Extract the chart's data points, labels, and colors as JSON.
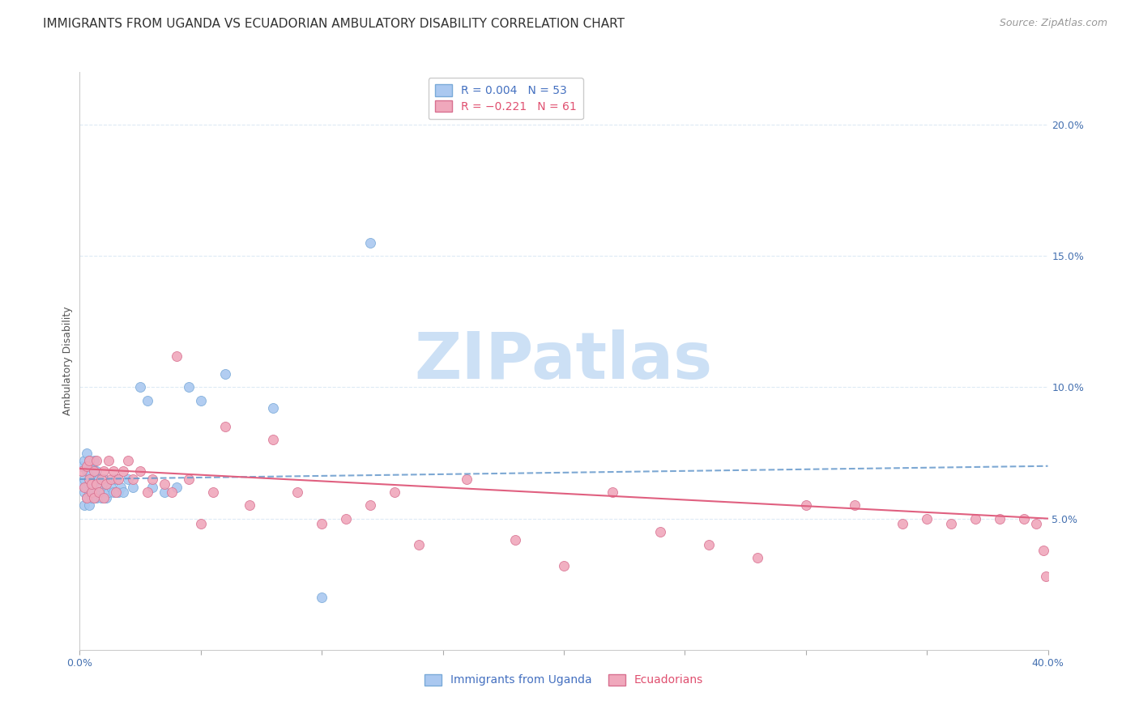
{
  "title": "IMMIGRANTS FROM UGANDA VS ECUADORIAN AMBULATORY DISABILITY CORRELATION CHART",
  "source": "Source: ZipAtlas.com",
  "ylabel": "Ambulatory Disability",
  "xlim": [
    0.0,
    0.4
  ],
  "ylim": [
    0.0,
    0.22
  ],
  "xtick_positions": [
    0.0,
    0.05,
    0.1,
    0.15,
    0.2,
    0.25,
    0.3,
    0.35,
    0.4
  ],
  "xtick_labels": [
    "0.0%",
    "",
    "",
    "",
    "",
    "",
    "",
    "",
    "40.0%"
  ],
  "ytick_positions": [
    0.05,
    0.1,
    0.15,
    0.2
  ],
  "ytick_labels": [
    "5.0%",
    "10.0%",
    "15.0%",
    "20.0%"
  ],
  "series1_name": "Immigrants from Uganda",
  "series2_name": "Ecuadorians",
  "series1_color": "#aac8f0",
  "series1_edge": "#7aaad8",
  "series2_color": "#f0a8bc",
  "series2_edge": "#d87090",
  "series1_line_color": "#6699cc",
  "series2_line_color": "#e06080",
  "title_fontsize": 11,
  "source_fontsize": 9,
  "axis_label_fontsize": 9,
  "tick_fontsize": 9,
  "legend_fontsize": 10,
  "watermark": "ZIPatlas",
  "watermark_color": "#cce0f5",
  "background_color": "#ffffff",
  "grid_color": "#ddeaf5",
  "blue_scatter_x": [
    0.001,
    0.001,
    0.002,
    0.002,
    0.002,
    0.002,
    0.003,
    0.003,
    0.003,
    0.003,
    0.004,
    0.004,
    0.004,
    0.004,
    0.004,
    0.005,
    0.005,
    0.005,
    0.005,
    0.006,
    0.006,
    0.006,
    0.007,
    0.007,
    0.007,
    0.008,
    0.008,
    0.009,
    0.009,
    0.01,
    0.01,
    0.011,
    0.011,
    0.012,
    0.013,
    0.014,
    0.015,
    0.016,
    0.017,
    0.018,
    0.02,
    0.022,
    0.025,
    0.028,
    0.03,
    0.035,
    0.04,
    0.045,
    0.05,
    0.06,
    0.08,
    0.1,
    0.12
  ],
  "blue_scatter_y": [
    0.063,
    0.07,
    0.055,
    0.065,
    0.072,
    0.06,
    0.058,
    0.068,
    0.062,
    0.075,
    0.055,
    0.063,
    0.068,
    0.072,
    0.06,
    0.058,
    0.065,
    0.07,
    0.063,
    0.06,
    0.065,
    0.072,
    0.058,
    0.063,
    0.068,
    0.06,
    0.065,
    0.058,
    0.062,
    0.06,
    0.065,
    0.058,
    0.063,
    0.06,
    0.062,
    0.06,
    0.065,
    0.06,
    0.062,
    0.06,
    0.065,
    0.062,
    0.1,
    0.095,
    0.062,
    0.06,
    0.062,
    0.1,
    0.095,
    0.105,
    0.092,
    0.02,
    0.155
  ],
  "pink_scatter_x": [
    0.001,
    0.002,
    0.003,
    0.003,
    0.004,
    0.004,
    0.005,
    0.005,
    0.006,
    0.006,
    0.007,
    0.007,
    0.008,
    0.009,
    0.01,
    0.01,
    0.011,
    0.012,
    0.013,
    0.014,
    0.015,
    0.016,
    0.018,
    0.02,
    0.022,
    0.025,
    0.028,
    0.03,
    0.035,
    0.038,
    0.04,
    0.045,
    0.05,
    0.055,
    0.06,
    0.07,
    0.08,
    0.09,
    0.1,
    0.11,
    0.12,
    0.13,
    0.14,
    0.16,
    0.18,
    0.2,
    0.22,
    0.24,
    0.26,
    0.28,
    0.3,
    0.32,
    0.34,
    0.35,
    0.36,
    0.37,
    0.38,
    0.39,
    0.395,
    0.398,
    0.399
  ],
  "pink_scatter_y": [
    0.068,
    0.062,
    0.07,
    0.058,
    0.065,
    0.072,
    0.06,
    0.063,
    0.058,
    0.068,
    0.063,
    0.072,
    0.06,
    0.065,
    0.058,
    0.068,
    0.063,
    0.072,
    0.065,
    0.068,
    0.06,
    0.065,
    0.068,
    0.072,
    0.065,
    0.068,
    0.06,
    0.065,
    0.063,
    0.06,
    0.112,
    0.065,
    0.048,
    0.06,
    0.085,
    0.055,
    0.08,
    0.06,
    0.048,
    0.05,
    0.055,
    0.06,
    0.04,
    0.065,
    0.042,
    0.032,
    0.06,
    0.045,
    0.04,
    0.035,
    0.055,
    0.055,
    0.048,
    0.05,
    0.048,
    0.05,
    0.05,
    0.05,
    0.048,
    0.038,
    0.028
  ]
}
